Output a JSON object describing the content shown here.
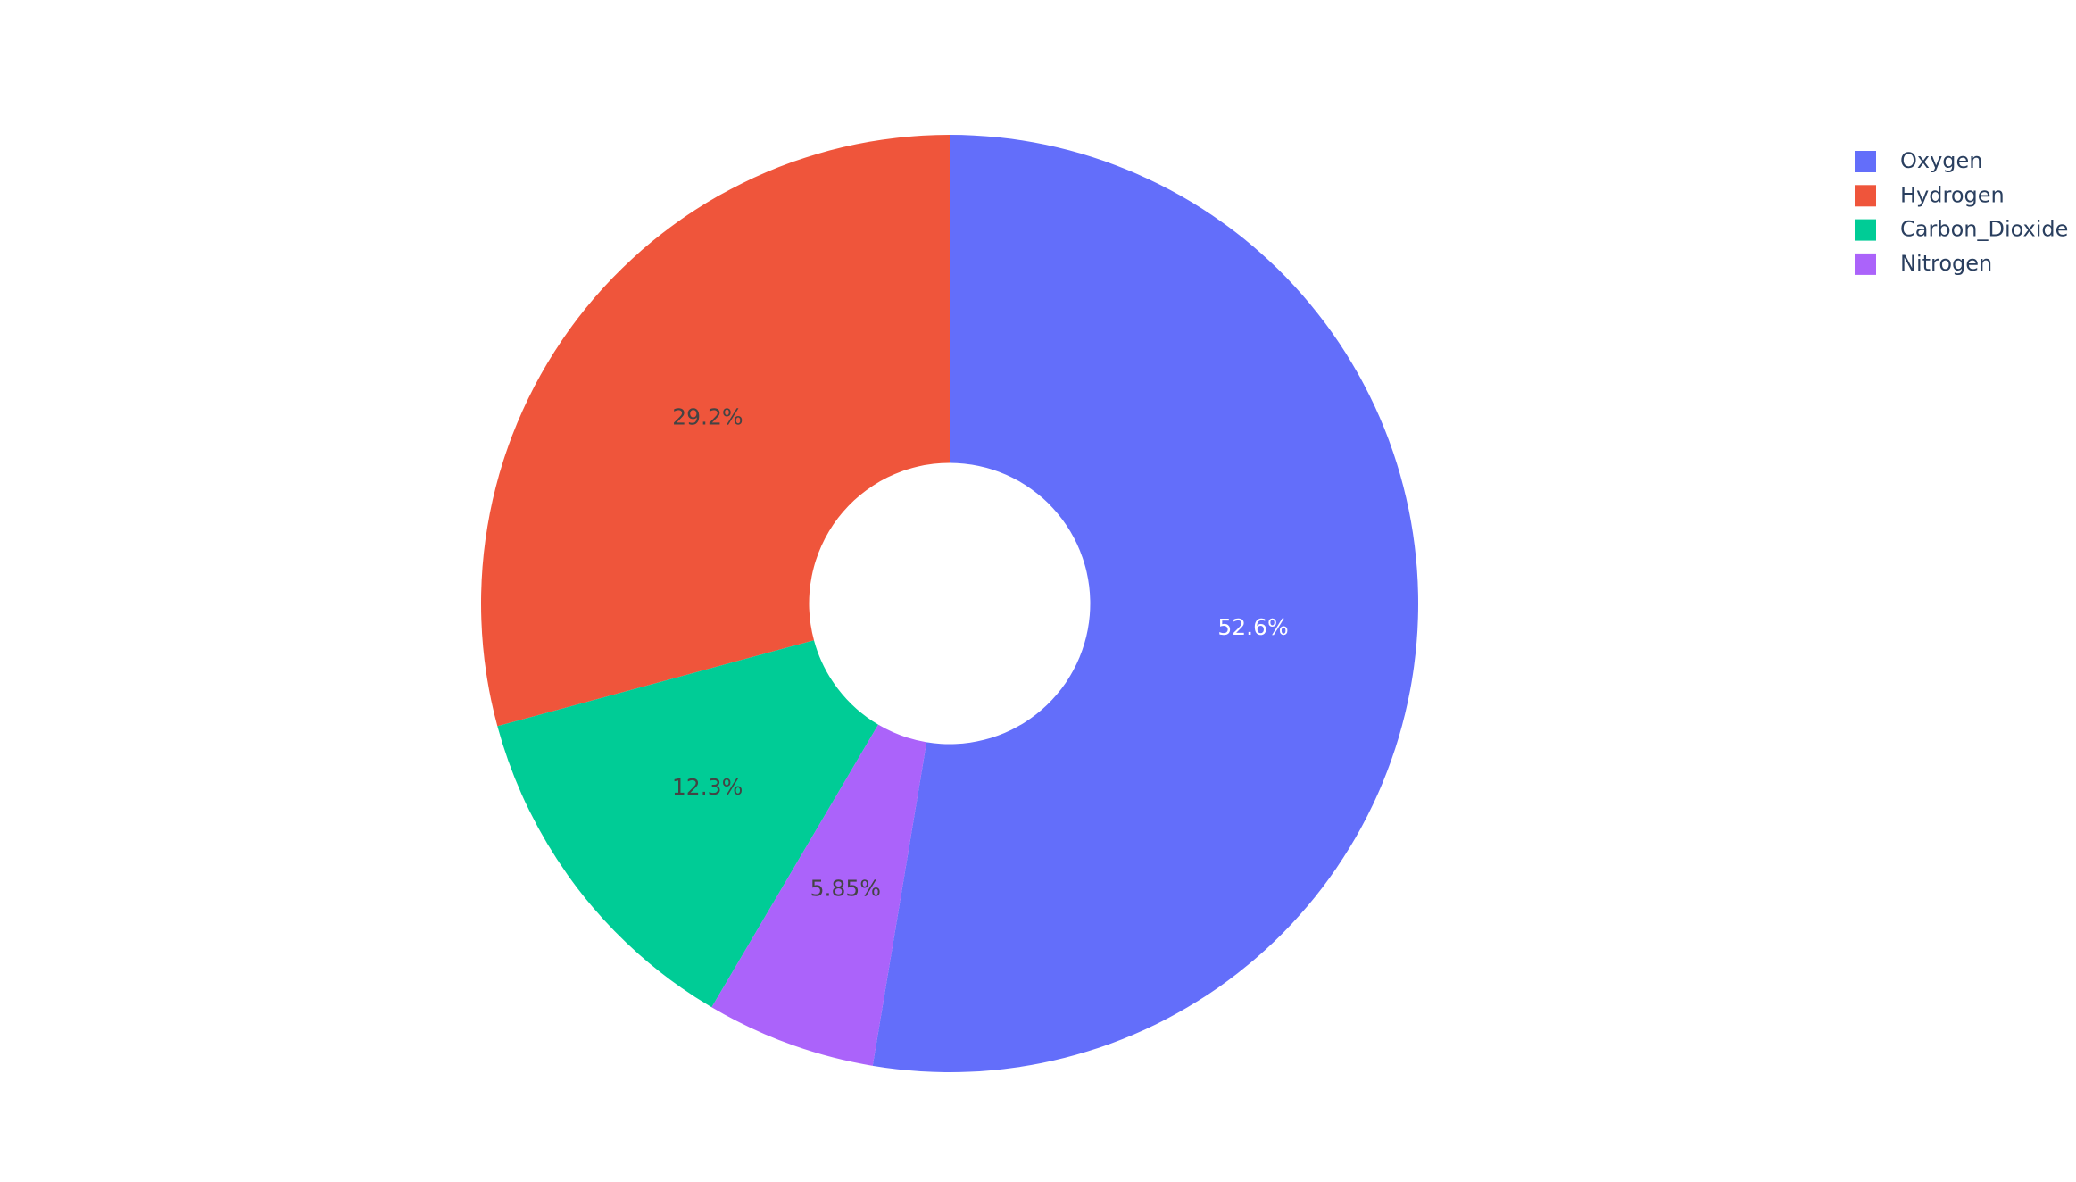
{
  "chart_data": {
    "type": "pie",
    "categories": [
      "Oxygen",
      "Hydrogen",
      "Carbon_Dioxide",
      "Nitrogen"
    ],
    "values": [
      52.6,
      29.2,
      12.3,
      5.85
    ],
    "value_labels": [
      "52.6%",
      "29.2%",
      "12.3%",
      "5.85%"
    ],
    "colors": [
      "#636efa",
      "#ef553b",
      "#00cc96",
      "#ab63fa"
    ],
    "label_colors": [
      "#ffffff",
      "#444444",
      "#444444",
      "#444444"
    ],
    "hole": 0.3,
    "direction": "counterclockwise",
    "legend": "top-right"
  }
}
